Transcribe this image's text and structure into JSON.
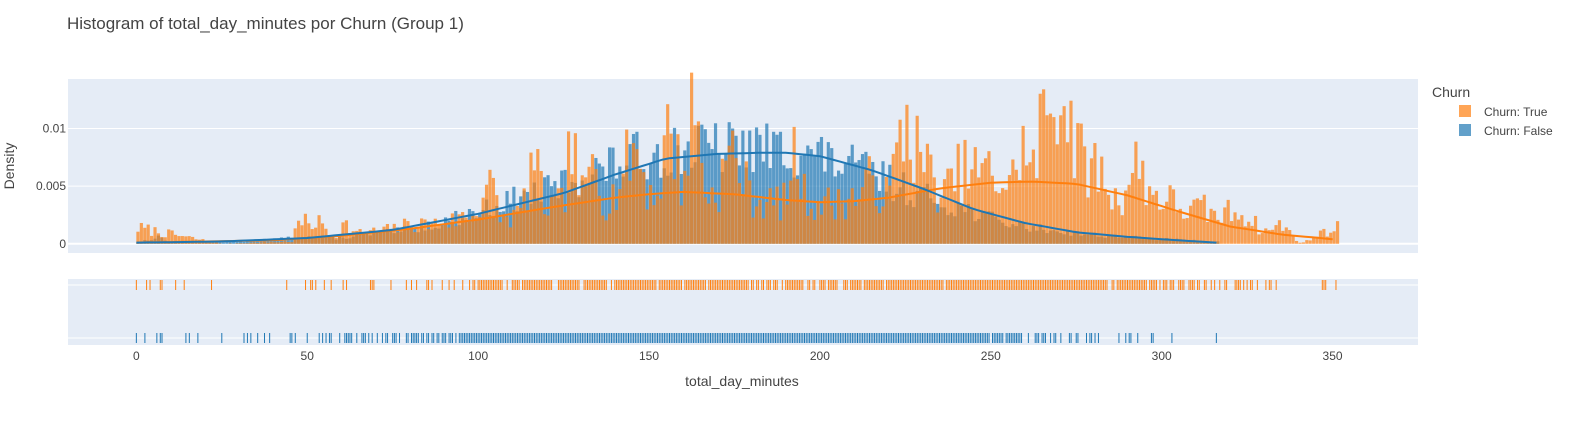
{
  "chart_data": {
    "type": "histogram",
    "title": "Histogram of total_day_minutes por Churn (Group 1)",
    "xlabel": "total_day_minutes",
    "ylabel": "Density",
    "xlim": [
      -20,
      375
    ],
    "ylim": [
      -0.0008,
      0.0143
    ],
    "x_ticks": [
      0,
      50,
      100,
      150,
      200,
      250,
      300,
      350
    ],
    "x_tick_labels": [
      "0",
      "50",
      "100",
      "150",
      "200",
      "250",
      "300",
      "350"
    ],
    "y_ticks": [
      0,
      0.005,
      0.01
    ],
    "y_tick_labels": [
      "0",
      "0.005",
      "0.01"
    ],
    "grid": true,
    "legend": {
      "title": "Churn",
      "placement": "top-right",
      "entries": [
        "Churn: True",
        "Churn: False"
      ]
    },
    "bin_width": 1,
    "series": [
      {
        "name": "Churn: True",
        "color": "#ff7f0e",
        "kde": [
          [
            0,
            0.0001
          ],
          [
            20,
            0.0002
          ],
          [
            40,
            0.0003
          ],
          [
            60,
            0.0007
          ],
          [
            80,
            0.0013
          ],
          [
            100,
            0.0021
          ],
          [
            120,
            0.0031
          ],
          [
            140,
            0.004
          ],
          [
            150,
            0.0043
          ],
          [
            160,
            0.0045
          ],
          [
            175,
            0.0043
          ],
          [
            190,
            0.0038
          ],
          [
            200,
            0.0036
          ],
          [
            210,
            0.0037
          ],
          [
            220,
            0.004
          ],
          [
            235,
            0.0048
          ],
          [
            250,
            0.0053
          ],
          [
            262,
            0.0054
          ],
          [
            275,
            0.0052
          ],
          [
            290,
            0.0042
          ],
          [
            305,
            0.0028
          ],
          [
            320,
            0.0015
          ],
          [
            335,
            0.0008
          ],
          [
            350,
            0.0004
          ]
        ],
        "anchors": [
          [
            0,
            0.0014
          ],
          [
            25,
            0.0
          ],
          [
            46,
            0.0002
          ],
          [
            47,
            0.0018
          ],
          [
            54,
            0.0018
          ],
          [
            58,
            0.0005
          ],
          [
            61,
            0.0018
          ],
          [
            64,
            0.0009
          ],
          [
            70,
            0.0011
          ],
          [
            76,
            0.0013
          ],
          [
            80,
            0.0017
          ],
          [
            84,
            0.0017
          ],
          [
            89,
            0.0018
          ],
          [
            93,
            0.002
          ],
          [
            96,
            0.0024
          ],
          [
            99,
            0.0024
          ],
          [
            103,
            0.0057
          ],
          [
            107,
            0.002
          ],
          [
            112,
            0.0026
          ],
          [
            114,
            0.004
          ],
          [
            116,
            0.0073
          ],
          [
            120,
            0.003
          ],
          [
            125,
            0.0035
          ],
          [
            127,
            0.0085
          ],
          [
            131,
            0.0037
          ],
          [
            134,
            0.0081
          ],
          [
            137,
            0.0035
          ],
          [
            140,
            0.0043
          ],
          [
            146,
            0.0087
          ],
          [
            150,
            0.0044
          ],
          [
            153,
            0.0044
          ],
          [
            156,
            0.011
          ],
          [
            160,
            0.0045
          ],
          [
            163,
            0.0127
          ],
          [
            167,
            0.004
          ],
          [
            170,
            0.0044
          ],
          [
            174,
            0.0083
          ],
          [
            180,
            0.004
          ],
          [
            185,
            0.0035
          ],
          [
            190,
            0.0037
          ],
          [
            193,
            0.008
          ],
          [
            196,
            0.0036
          ],
          [
            205,
            0.0035
          ],
          [
            211,
            0.0041
          ],
          [
            215,
            0.0055
          ],
          [
            220,
            0.004
          ],
          [
            225,
            0.011
          ],
          [
            228,
            0.0084
          ],
          [
            236,
            0.0041
          ],
          [
            241,
            0.0063
          ],
          [
            245,
            0.0063
          ],
          [
            250,
            0.0061
          ],
          [
            256,
            0.0049
          ],
          [
            259,
            0.0091
          ],
          [
            262,
            0.0056
          ],
          [
            265,
            0.0105
          ],
          [
            270,
            0.0139
          ],
          [
            273,
            0.0112
          ],
          [
            276,
            0.0074
          ],
          [
            282,
            0.0063
          ],
          [
            287,
            0.0035
          ],
          [
            293,
            0.0071
          ],
          [
            297,
            0.0044
          ],
          [
            302,
            0.0038
          ],
          [
            308,
            0.0028
          ],
          [
            312,
            0.0031
          ],
          [
            316,
            0.0023
          ],
          [
            320,
            0.0028
          ],
          [
            324,
            0.0027
          ],
          [
            330,
            0.001
          ],
          [
            335,
            0.0017
          ],
          [
            341,
            0.0
          ],
          [
            345,
            0.0007
          ],
          [
            351,
            0.0014
          ]
        ],
        "rug_range": [
          0,
          351
        ]
      },
      {
        "name": "Churn: False",
        "color": "#1f77b4",
        "kde": [
          [
            0,
            0.0001
          ],
          [
            25,
            0.0002
          ],
          [
            50,
            0.0005
          ],
          [
            75,
            0.0012
          ],
          [
            100,
            0.0026
          ],
          [
            125,
            0.0044
          ],
          [
            140,
            0.006
          ],
          [
            155,
            0.0074
          ],
          [
            170,
            0.0078
          ],
          [
            183,
            0.0079
          ],
          [
            190,
            0.0079
          ],
          [
            200,
            0.0076
          ],
          [
            215,
            0.0064
          ],
          [
            230,
            0.0048
          ],
          [
            245,
            0.003
          ],
          [
            260,
            0.0018
          ],
          [
            275,
            0.001
          ],
          [
            290,
            0.0006
          ],
          [
            305,
            0.0003
          ],
          [
            316,
            0.0001
          ]
        ],
        "anchors": [
          [
            0,
            0.0001
          ],
          [
            7,
            0.0006
          ],
          [
            10,
            0.0001
          ],
          [
            30,
            0.0002
          ],
          [
            35,
            0.0003
          ],
          [
            50,
            0.0006
          ],
          [
            60,
            0.0005
          ],
          [
            70,
            0.0009
          ],
          [
            80,
            0.0012
          ],
          [
            90,
            0.0019
          ],
          [
            100,
            0.0028
          ],
          [
            110,
            0.0038
          ],
          [
            120,
            0.0046
          ],
          [
            125,
            0.0052
          ],
          [
            130,
            0.0058
          ],
          [
            135,
            0.0064
          ],
          [
            140,
            0.0068
          ],
          [
            145,
            0.0074
          ],
          [
            150,
            0.0078
          ],
          [
            155,
            0.008
          ],
          [
            160,
            0.0082
          ],
          [
            165,
            0.0083
          ],
          [
            170,
            0.0082
          ],
          [
            175,
            0.0083
          ],
          [
            180,
            0.0084
          ],
          [
            185,
            0.0082
          ],
          [
            190,
            0.0081
          ],
          [
            195,
            0.0079
          ],
          [
            200,
            0.0076
          ],
          [
            205,
            0.007
          ],
          [
            210,
            0.0066
          ],
          [
            215,
            0.0062
          ],
          [
            220,
            0.0054
          ],
          [
            225,
            0.0048
          ],
          [
            230,
            0.0042
          ],
          [
            235,
            0.0037
          ],
          [
            240,
            0.0032
          ],
          [
            245,
            0.0028
          ],
          [
            250,
            0.0022
          ],
          [
            255,
            0.0018
          ],
          [
            260,
            0.0015
          ],
          [
            270,
            0.0011
          ],
          [
            280,
            0.0008
          ],
          [
            290,
            0.0006
          ],
          [
            300,
            0.0004
          ],
          [
            310,
            0.0003
          ],
          [
            316,
            0.0002
          ]
        ],
        "rug_range": [
          0,
          316
        ]
      }
    ]
  }
}
